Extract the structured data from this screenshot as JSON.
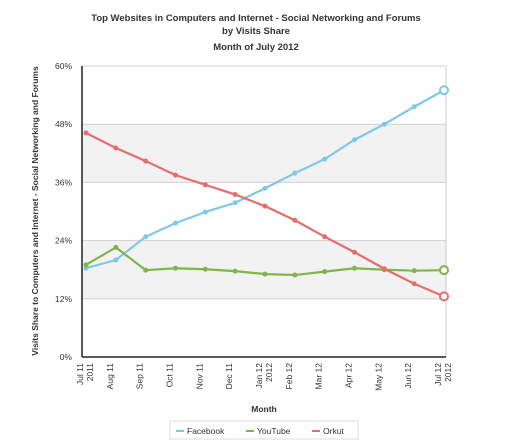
{
  "chart_data": {
    "type": "line",
    "title_lines": [
      "Top Websites in Computers and Internet - Social Networking and Forums",
      "by Visits Share",
      "Month of July 2012"
    ],
    "xlabel": "Month",
    "ylabel": "Visits Share to Computers and Internet - Social Networking and Forums",
    "categories": [
      [
        "Jul 11",
        "2011"
      ],
      [
        "Aug 11"
      ],
      [
        "Sep 11"
      ],
      [
        "Oct 11"
      ],
      [
        "Nov 11"
      ],
      [
        "Dec 11"
      ],
      [
        "Jan 12",
        "2012"
      ],
      [
        "Feb 12"
      ],
      [
        "Mar 12"
      ],
      [
        "Apr 12"
      ],
      [
        "May 12"
      ],
      [
        "Jun 12"
      ],
      [
        "Jul 12",
        "2012"
      ]
    ],
    "ylim": [
      0,
      60
    ],
    "yticks": [
      {
        "value": 0,
        "label": "0%"
      },
      {
        "value": 12,
        "label": "12%"
      },
      {
        "value": 24,
        "label": "24%"
      },
      {
        "value": 36,
        "label": "36%"
      },
      {
        "value": 48,
        "label": "48%"
      },
      {
        "value": 60,
        "label": "60%"
      }
    ],
    "series": [
      {
        "name": "Facebook",
        "color": "#7ec8e8",
        "values": [
          18.3,
          20,
          24.8,
          27.6,
          29.9,
          31.8,
          34.8,
          37.9,
          40.8,
          44.8,
          48.0,
          51.6,
          55.0
        ]
      },
      {
        "name": "YouTube",
        "color": "#7fb54a",
        "values": [
          19.0,
          22.6,
          17.9,
          18.3,
          18.1,
          17.7,
          17.1,
          16.9,
          17.6,
          18.3,
          18.0,
          17.8,
          17.9
        ]
      },
      {
        "name": "Orkut",
        "color": "#e86c6c",
        "values": [
          46.2,
          43.1,
          40.4,
          37.5,
          35.5,
          33.5,
          31.1,
          28.2,
          24.8,
          21.6,
          18.2,
          15.1,
          12.5
        ]
      }
    ],
    "grid": true,
    "legend_position": "bottom"
  }
}
